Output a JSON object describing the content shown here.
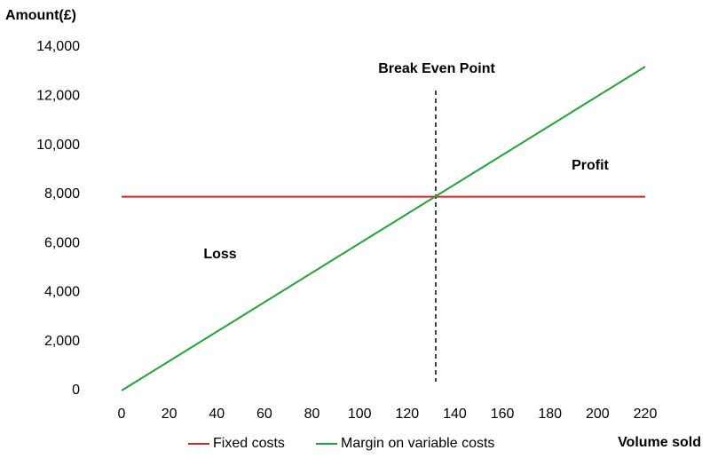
{
  "chart_data": {
    "type": "line",
    "y_label": "Amount(£)",
    "x_label": "Volume sold",
    "x": [
      0,
      220
    ],
    "series": [
      {
        "name": "Fixed costs",
        "color": "#d62728",
        "values": [
          7900,
          7900
        ]
      },
      {
        "name": "Margin on variable costs",
        "color": "#1fa637",
        "values": [
          0,
          13200
        ]
      }
    ],
    "break_even_x": 132,
    "annotations": [
      "Break Even Point",
      "Profit",
      "Loss"
    ],
    "xlim": [
      0,
      220
    ],
    "xticks": [
      0,
      20,
      40,
      60,
      80,
      100,
      120,
      140,
      160,
      180,
      200,
      220
    ],
    "ylim": [
      0,
      14000
    ],
    "yticks": [
      0,
      {
        "value": 2000,
        "label": "2,000"
      },
      {
        "value": 4000,
        "label": "4,000"
      },
      {
        "value": 6000,
        "label": "6,000"
      },
      {
        "value": 8000,
        "label": "8,000"
      },
      {
        "value": 10000,
        "label": "10,000"
      },
      {
        "value": 12000,
        "label": "12,000"
      },
      {
        "value": 14000,
        "label": "14,000"
      }
    ],
    "grid": false,
    "legend": "bottom"
  }
}
